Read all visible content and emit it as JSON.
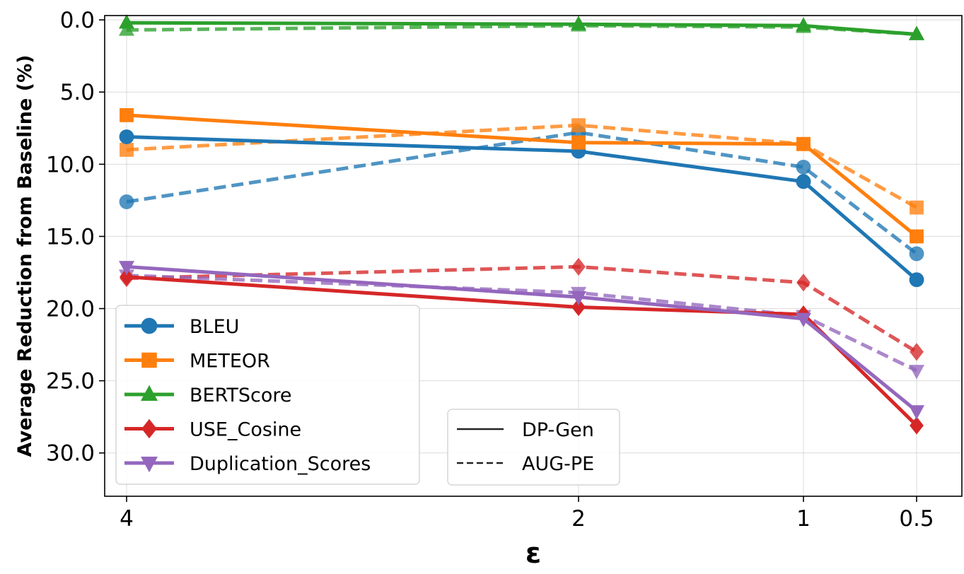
{
  "chart_data": {
    "type": "line",
    "title": "",
    "xlabel": "ε",
    "ylabel": "Average Reduction from Baseline (%)",
    "x_categories": [
      "4",
      "2",
      "1",
      "0.5"
    ],
    "ylim": [
      33,
      -0.3
    ],
    "y_inverted": true,
    "yticks": [
      "0.0",
      "5.0",
      "10.0",
      "15.0",
      "20.0",
      "25.0",
      "30.0"
    ],
    "grid": true,
    "series": [
      {
        "name": "BLEU",
        "method": "DP-Gen",
        "color": "#1f77b4",
        "marker": "circle",
        "values": [
          8.1,
          9.1,
          11.2,
          18.0
        ]
      },
      {
        "name": "METEOR",
        "method": "DP-Gen",
        "color": "#ff7f0e",
        "marker": "square",
        "values": [
          6.6,
          8.5,
          8.6,
          15.0
        ]
      },
      {
        "name": "BERTScore",
        "method": "DP-Gen",
        "color": "#2ca02c",
        "marker": "triangle-up",
        "values": [
          0.2,
          0.3,
          0.4,
          1.0
        ]
      },
      {
        "name": "USE_Cosine",
        "method": "DP-Gen",
        "color": "#d62728",
        "marker": "diamond",
        "values": [
          17.8,
          19.9,
          20.4,
          28.1
        ]
      },
      {
        "name": "Duplication_Scores",
        "method": "DP-Gen",
        "color": "#9467bd",
        "marker": "triangle-down",
        "values": [
          17.1,
          19.2,
          20.7,
          27.1
        ]
      },
      {
        "name": "BLEU",
        "method": "AUG-PE",
        "color": "#1f77b4",
        "marker": "circle",
        "values": [
          12.6,
          7.8,
          10.2,
          16.2
        ]
      },
      {
        "name": "METEOR",
        "method": "AUG-PE",
        "color": "#ff7f0e",
        "marker": "square",
        "values": [
          9.0,
          7.3,
          8.6,
          13.0
        ]
      },
      {
        "name": "BERTScore",
        "method": "AUG-PE",
        "color": "#2ca02c",
        "marker": "triangle-up",
        "values": [
          0.7,
          0.4,
          0.5,
          1.0
        ]
      },
      {
        "name": "USE_Cosine",
        "method": "AUG-PE",
        "color": "#d62728",
        "marker": "diamond",
        "values": [
          17.9,
          17.1,
          18.2,
          23.0
        ]
      },
      {
        "name": "Duplication_Scores",
        "method": "AUG-PE",
        "color": "#9467bd",
        "marker": "triangle-down",
        "values": [
          17.7,
          18.9,
          20.5,
          24.3
        ]
      }
    ],
    "legend_metrics": {
      "placement": "lower-left",
      "entries": [
        {
          "label": "BLEU",
          "color": "#1f77b4",
          "marker": "circle"
        },
        {
          "label": "METEOR",
          "color": "#ff7f0e",
          "marker": "square"
        },
        {
          "label": "BERTScore",
          "color": "#2ca02c",
          "marker": "triangle-up"
        },
        {
          "label": "USE_Cosine",
          "color": "#d62728",
          "marker": "diamond"
        },
        {
          "label": "Duplication_Scores",
          "color": "#9467bd",
          "marker": "triangle-down"
        }
      ]
    },
    "legend_methods": {
      "placement": "lower-center",
      "entries": [
        {
          "label": "DP-Gen",
          "style": "solid"
        },
        {
          "label": "AUG-PE",
          "style": "dashed"
        }
      ]
    }
  }
}
